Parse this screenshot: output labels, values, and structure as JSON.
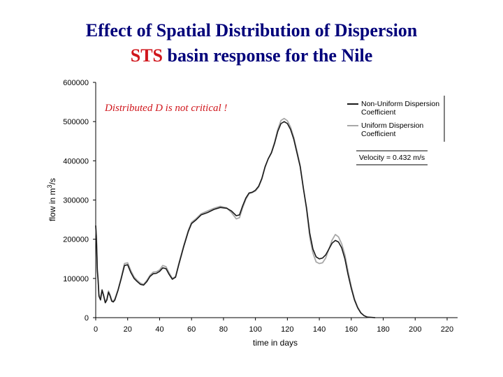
{
  "slide": {
    "title_line1": "Effect of Spatial Distribution of Dispersion",
    "title_line2_accent": "STS",
    "title_line2_rest": " basin response for the Nile"
  },
  "chart_data": {
    "type": "line",
    "xlabel": "time in days",
    "ylabel": "flow in m",
    "ylabel_sup": "3",
    "ylabel_suffix": "/s",
    "xlim": [
      0,
      220
    ],
    "ylim": [
      0,
      600000
    ],
    "xticks": [
      0,
      20,
      40,
      60,
      80,
      100,
      120,
      140,
      160,
      180,
      200,
      220
    ],
    "yticks": [
      0,
      100000,
      200000,
      300000,
      400000,
      500000,
      600000
    ],
    "grid": false,
    "legend_position": "top-right",
    "annotation": "Distributed D is not critical !",
    "note": "Velocity = 0.432 m/s",
    "series": [
      {
        "name": "Non-Uniform Dispersion Coefficient",
        "name_line1": "Non-Uniform Dispersion",
        "name_line2": "Coefficient",
        "color": "#1a1a1a",
        "points": [
          [
            0,
            235000
          ],
          [
            0.5,
            200000
          ],
          [
            1,
            120000
          ],
          [
            1.5,
            95000
          ],
          [
            2,
            55000
          ],
          [
            3,
            45000
          ],
          [
            4,
            70000
          ],
          [
            5,
            55000
          ],
          [
            6,
            38000
          ],
          [
            7,
            45000
          ],
          [
            8,
            65000
          ],
          [
            9,
            55000
          ],
          [
            10,
            42000
          ],
          [
            11,
            40000
          ],
          [
            12,
            45000
          ],
          [
            14,
            70000
          ],
          [
            16,
            100000
          ],
          [
            18,
            133000
          ],
          [
            20,
            135000
          ],
          [
            22,
            115000
          ],
          [
            24,
            100000
          ],
          [
            26,
            92000
          ],
          [
            28,
            85000
          ],
          [
            30,
            83000
          ],
          [
            32,
            92000
          ],
          [
            34,
            105000
          ],
          [
            36,
            112000
          ],
          [
            38,
            113000
          ],
          [
            40,
            118000
          ],
          [
            42,
            127000
          ],
          [
            44,
            125000
          ],
          [
            46,
            110000
          ],
          [
            48,
            98000
          ],
          [
            50,
            103000
          ],
          [
            52,
            135000
          ],
          [
            55,
            180000
          ],
          [
            58,
            220000
          ],
          [
            60,
            240000
          ],
          [
            63,
            250000
          ],
          [
            66,
            262000
          ],
          [
            70,
            268000
          ],
          [
            74,
            276000
          ],
          [
            78,
            281000
          ],
          [
            82,
            279000
          ],
          [
            85,
            272000
          ],
          [
            88,
            260000
          ],
          [
            90,
            262000
          ],
          [
            92,
            285000
          ],
          [
            94,
            305000
          ],
          [
            96,
            318000
          ],
          [
            98,
            320000
          ],
          [
            100,
            325000
          ],
          [
            102,
            335000
          ],
          [
            104,
            355000
          ],
          [
            106,
            385000
          ],
          [
            108,
            405000
          ],
          [
            110,
            420000
          ],
          [
            112,
            445000
          ],
          [
            114,
            475000
          ],
          [
            116,
            495000
          ],
          [
            118,
            500000
          ],
          [
            120,
            495000
          ],
          [
            122,
            480000
          ],
          [
            124,
            455000
          ],
          [
            126,
            420000
          ],
          [
            128,
            385000
          ],
          [
            130,
            330000
          ],
          [
            132,
            280000
          ],
          [
            134,
            215000
          ],
          [
            136,
            175000
          ],
          [
            138,
            155000
          ],
          [
            140,
            150000
          ],
          [
            142,
            152000
          ],
          [
            144,
            160000
          ],
          [
            146,
            175000
          ],
          [
            148,
            190000
          ],
          [
            150,
            197000
          ],
          [
            152,
            193000
          ],
          [
            154,
            178000
          ],
          [
            156,
            150000
          ],
          [
            158,
            110000
          ],
          [
            160,
            75000
          ],
          [
            162,
            45000
          ],
          [
            164,
            25000
          ],
          [
            166,
            12000
          ],
          [
            168,
            5000
          ],
          [
            170,
            1500
          ],
          [
            175,
            0
          ]
        ]
      },
      {
        "name": "Uniform Dispersion Coefficient",
        "name_line1": "Uniform Dispersion",
        "name_line2": "Coefficient",
        "color": "#a8a8a8",
        "points": [
          [
            0,
            235000
          ],
          [
            0.5,
            200000
          ],
          [
            1,
            125000
          ],
          [
            1.5,
            100000
          ],
          [
            2,
            60000
          ],
          [
            3,
            50000
          ],
          [
            4,
            72000
          ],
          [
            5,
            58000
          ],
          [
            6,
            40000
          ],
          [
            7,
            48000
          ],
          [
            8,
            68000
          ],
          [
            9,
            58000
          ],
          [
            10,
            45000
          ],
          [
            11,
            42000
          ],
          [
            12,
            48000
          ],
          [
            14,
            72000
          ],
          [
            16,
            103000
          ],
          [
            18,
            138000
          ],
          [
            20,
            140000
          ],
          [
            22,
            120000
          ],
          [
            24,
            104000
          ],
          [
            26,
            95000
          ],
          [
            28,
            88000
          ],
          [
            30,
            85000
          ],
          [
            32,
            95000
          ],
          [
            34,
            108000
          ],
          [
            36,
            116000
          ],
          [
            38,
            117000
          ],
          [
            40,
            122000
          ],
          [
            42,
            133000
          ],
          [
            44,
            130000
          ],
          [
            46,
            114000
          ],
          [
            48,
            100000
          ],
          [
            50,
            105000
          ],
          [
            52,
            138000
          ],
          [
            55,
            183000
          ],
          [
            58,
            223000
          ],
          [
            60,
            243000
          ],
          [
            63,
            253000
          ],
          [
            66,
            265000
          ],
          [
            70,
            272000
          ],
          [
            74,
            279000
          ],
          [
            78,
            284000
          ],
          [
            82,
            280000
          ],
          [
            85,
            268000
          ],
          [
            88,
            252000
          ],
          [
            90,
            255000
          ],
          [
            92,
            280000
          ],
          [
            94,
            302000
          ],
          [
            96,
            316000
          ],
          [
            98,
            319000
          ],
          [
            100,
            323000
          ],
          [
            102,
            333000
          ],
          [
            104,
            353000
          ],
          [
            106,
            383000
          ],
          [
            108,
            405000
          ],
          [
            110,
            422000
          ],
          [
            112,
            448000
          ],
          [
            114,
            480000
          ],
          [
            116,
            503000
          ],
          [
            118,
            508000
          ],
          [
            120,
            502000
          ],
          [
            122,
            486000
          ],
          [
            124,
            460000
          ],
          [
            126,
            425000
          ],
          [
            128,
            388000
          ],
          [
            130,
            332000
          ],
          [
            132,
            275000
          ],
          [
            134,
            205000
          ],
          [
            136,
            165000
          ],
          [
            138,
            142000
          ],
          [
            140,
            138000
          ],
          [
            142,
            140000
          ],
          [
            144,
            152000
          ],
          [
            146,
            175000
          ],
          [
            148,
            198000
          ],
          [
            150,
            212000
          ],
          [
            152,
            206000
          ],
          [
            154,
            188000
          ],
          [
            156,
            160000
          ],
          [
            158,
            118000
          ],
          [
            160,
            80000
          ],
          [
            162,
            48000
          ],
          [
            164,
            27000
          ],
          [
            166,
            13000
          ],
          [
            168,
            5500
          ],
          [
            170,
            1500
          ],
          [
            175,
            0
          ]
        ]
      }
    ]
  }
}
